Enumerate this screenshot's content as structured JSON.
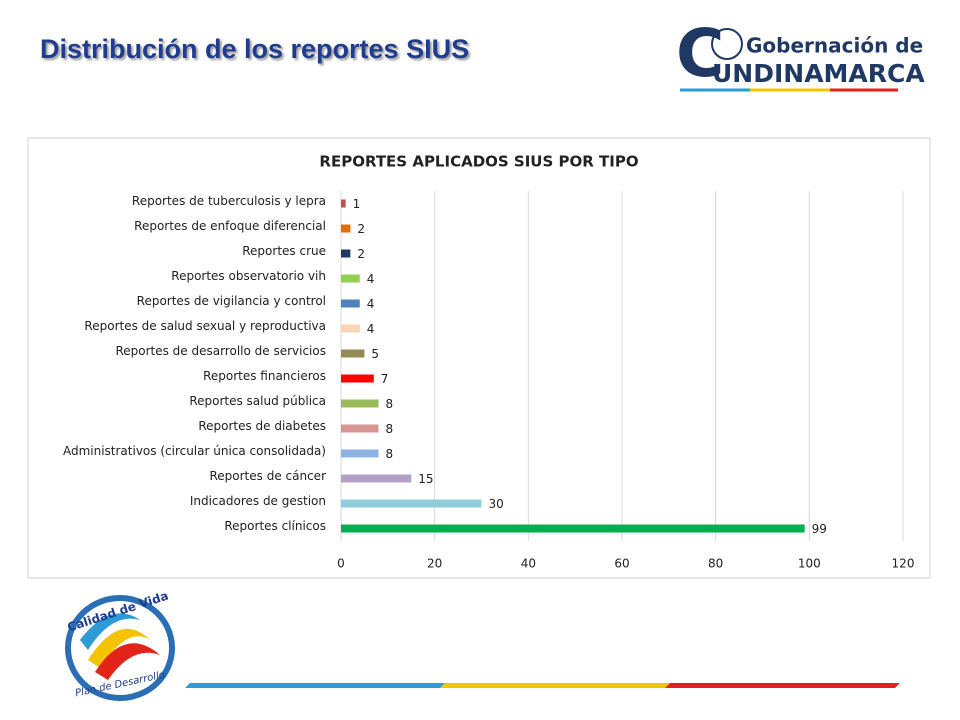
{
  "header": {
    "title": "Distribución de los reportes SIUS"
  },
  "logo": {
    "line1": "Gobernación de",
    "initial": "C",
    "rest": "UNDINAMARCA"
  },
  "chart_data": {
    "type": "bar",
    "orientation": "horizontal",
    "title": "REPORTES APLICADOS SIUS POR TIPO",
    "categories": [
      "Reportes de tuberculosis y lepra",
      "Reportes de enfoque diferencial",
      "Reportes crue",
      "Reportes observatorio vih",
      "Reportes de vigilancia y control",
      "Reportes de salud sexual y reproductiva",
      "Reportes de desarrollo de servicios",
      "Reportes financieros",
      "Reportes salud pública",
      "Reportes de diabetes",
      "Administrativos (circular única consolidada)",
      "Reportes de cáncer",
      "Indicadores de gestion",
      "Reportes clínicos"
    ],
    "values": [
      1,
      2,
      2,
      4,
      4,
      4,
      5,
      7,
      8,
      8,
      8,
      15,
      30,
      99
    ],
    "colors": [
      "#c0504d",
      "#e36c09",
      "#1f3864",
      "#92d050",
      "#4f81bd",
      "#fbd5b5",
      "#948a54",
      "#ff0000",
      "#9bbb59",
      "#d99694",
      "#8db3e2",
      "#b2a1c7",
      "#92cddc",
      "#00b050"
    ],
    "xlim": [
      0,
      120
    ],
    "xticks": [
      0,
      20,
      40,
      60,
      80,
      100,
      120
    ],
    "grid": true
  },
  "footer_logo": {
    "top": "Calidad de Vida",
    "bottom": "Plan de Desarrollo"
  }
}
